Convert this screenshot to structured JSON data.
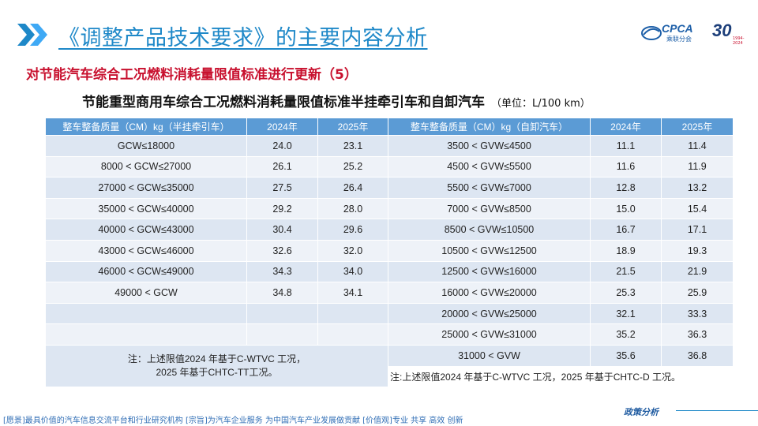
{
  "header": {
    "title": "《调整产品技术要求》的主要内容分析",
    "logo_text": "CPCA",
    "logo_sub": "乘联分会",
    "badge_number": "30",
    "badge_sub": "1994-2024"
  },
  "section": {
    "heading": "对节能汽车综合工况燃料消耗量限值标准进行更新（5）",
    "table_title": "节能重型商用车综合工况燃料消耗量限值标准半挂牵引车和自卸汽车",
    "unit": "（单位：L/100 km）"
  },
  "table": {
    "headers": [
      "整车整备质量（CM）kg（半挂牵引车）",
      "2024年",
      "2025年",
      "整车整备质量（CM）kg（自卸汽车）",
      "2024年",
      "2025年"
    ],
    "rows": [
      [
        "GCW≤18000",
        "24.0",
        "23.1",
        "3500 < GVW≤4500",
        "11.1",
        "11.4"
      ],
      [
        "8000 < GCW≤27000",
        "26.1",
        "25.2",
        "4500 < GVW≤5500",
        "11.6",
        "11.9"
      ],
      [
        "27000 < GCW≤35000",
        "27.5",
        "26.4",
        "5500 < GVW≤7000",
        "12.8",
        "13.2"
      ],
      [
        "35000 < GCW≤40000",
        "29.2",
        "28.0",
        "7000 < GVW≤8500",
        "15.0",
        "15.4"
      ],
      [
        "40000 < GCW≤43000",
        "30.4",
        "29.6",
        "8500 < GVW≤10500",
        "16.7",
        "17.1"
      ],
      [
        "43000 < GCW≤46000",
        "32.6",
        "32.0",
        "10500 < GVW≤12500",
        "18.9",
        "19.3"
      ],
      [
        "46000 < GCW≤49000",
        "34.3",
        "34.0",
        "12500 < GVW≤16000",
        "21.5",
        "21.9"
      ],
      [
        "49000 < GCW",
        "34.8",
        "34.1",
        "16000 < GVW≤20000",
        "25.3",
        "25.9"
      ],
      [
        "",
        "",
        "",
        "20000 < GVW≤25000",
        "32.1",
        "33.3"
      ],
      [
        "",
        "",
        "",
        "25000 < GVW≤31000",
        "35.2",
        "36.3"
      ],
      [
        "",
        "",
        "",
        "31000 < GVW",
        "35.6",
        "36.8"
      ]
    ],
    "note_left_line1": "注：上述限值2024 年基于C-WTVC 工况，",
    "note_left_line2": "2025 年基于CHTC-TT工况。",
    "note_right": "注:上述限值2024 年基于C-WTVC 工况，2025 年基于CHTC-D 工况。"
  },
  "footer": {
    "text": "[愿景]最具价值的汽车信息交流平台和行业研究机构 [宗旨]为汽车企业服务 为中国汽车产业发展做贡献 [价值观]专业 共享 高效 创新",
    "brand": "政策分析"
  },
  "colors": {
    "title_blue": "#1e88c8",
    "heading_red": "#c8102e",
    "header_blue": "#5b9bd5",
    "row_light": "#dde6f2",
    "row_lighter": "#eef2f8"
  }
}
